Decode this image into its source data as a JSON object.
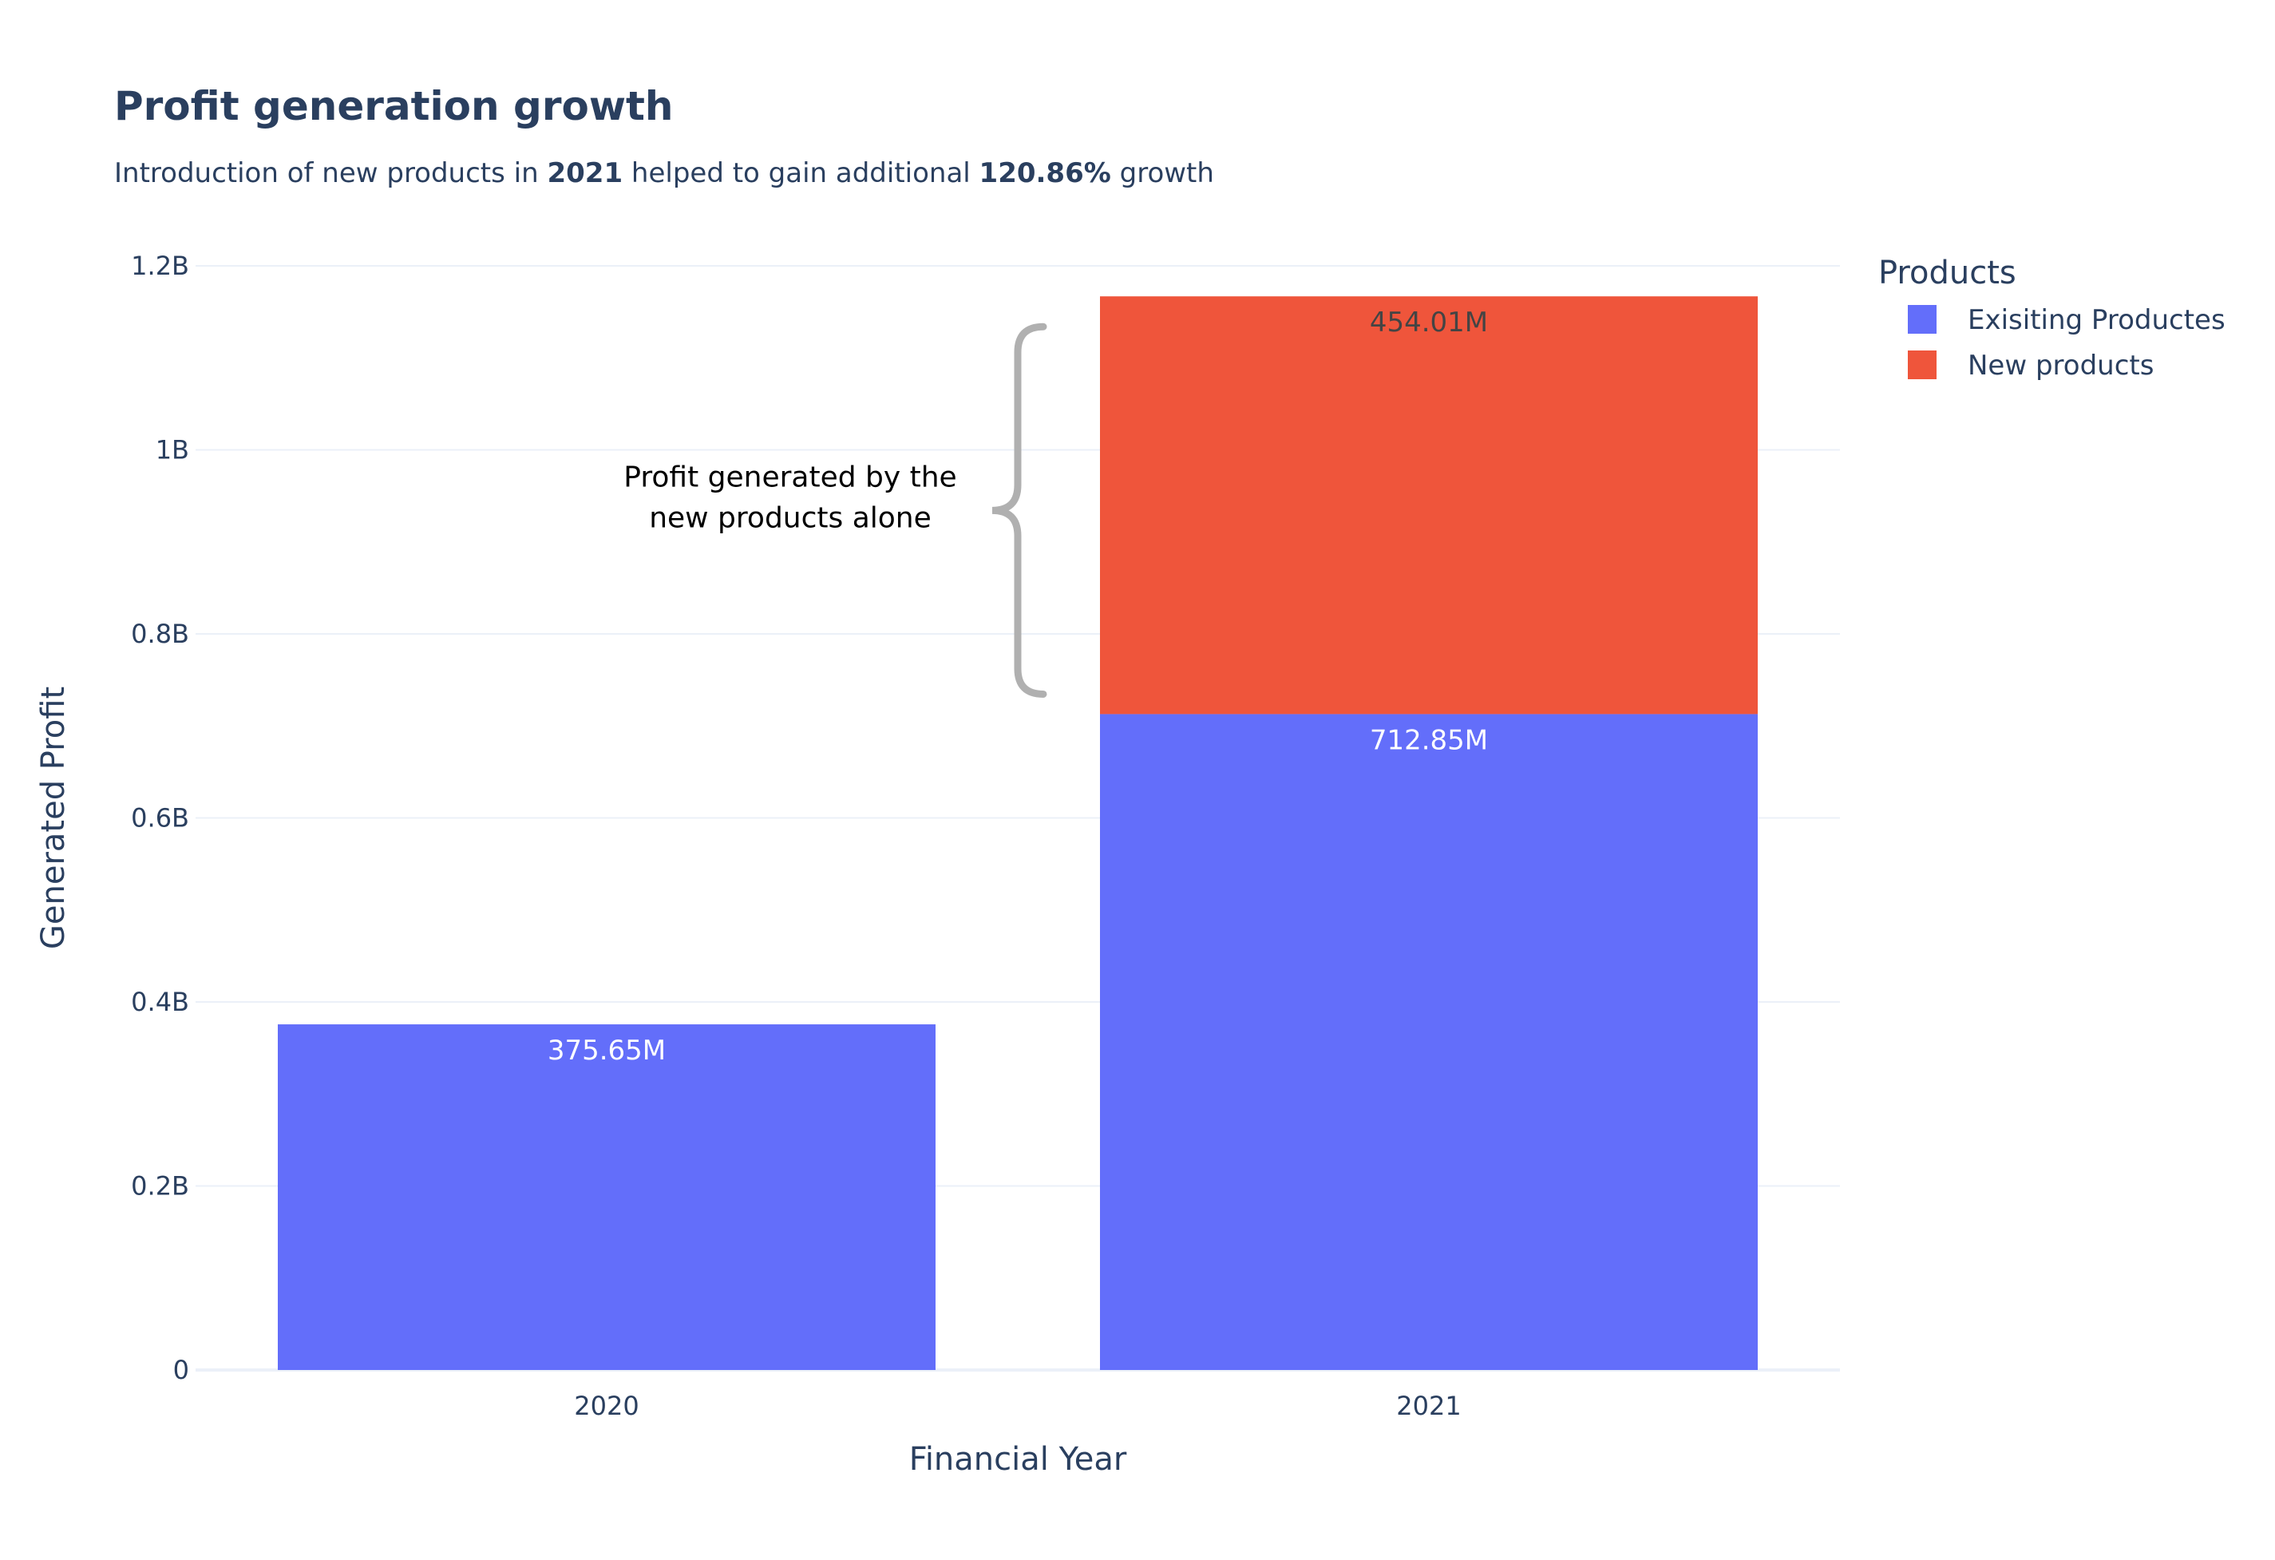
{
  "chart_data": {
    "type": "bar",
    "barmode": "stack",
    "title": "Profit generation growth",
    "subtitle": {
      "parts": [
        {
          "text": "Introduction of new products in ",
          "bold": false
        },
        {
          "text": "2021",
          "bold": true
        },
        {
          "text": " helped to gain additional ",
          "bold": false
        },
        {
          "text": "120.86%",
          "bold": true
        },
        {
          "text": " growth",
          "bold": false
        }
      ]
    },
    "xlabel": "Financial Year",
    "ylabel": "Generated Profit",
    "categories": [
      "2020",
      "2021"
    ],
    "ylim": [
      0,
      1200000000
    ],
    "yticks": [
      {
        "value": 0,
        "label": "0"
      },
      {
        "value": 200000000,
        "label": "0.2B"
      },
      {
        "value": 400000000,
        "label": "0.4B"
      },
      {
        "value": 600000000,
        "label": "0.6B"
      },
      {
        "value": 800000000,
        "label": "0.8B"
      },
      {
        "value": 1000000000,
        "label": "1B"
      },
      {
        "value": 1200000000,
        "label": "1.2B"
      }
    ],
    "grid": true,
    "legend": {
      "title": "Products",
      "placement": "top-right"
    },
    "series": [
      {
        "name": "Exisiting Productes",
        "color": "#636efa",
        "label_color": "#ffffff",
        "values": [
          375650000,
          712850000
        ],
        "labels": [
          "375.65M",
          "712.85M"
        ]
      },
      {
        "name": "New products",
        "color": "#ef553b",
        "label_color": "#444444",
        "values": [
          null,
          454010000
        ],
        "labels": [
          null,
          "454.01M"
        ]
      }
    ],
    "annotation": {
      "lines": [
        "Profit generated by the",
        "new products alone"
      ],
      "bracket_color": "#b0b0b0",
      "spans_series": "New products",
      "category": "2021"
    }
  }
}
